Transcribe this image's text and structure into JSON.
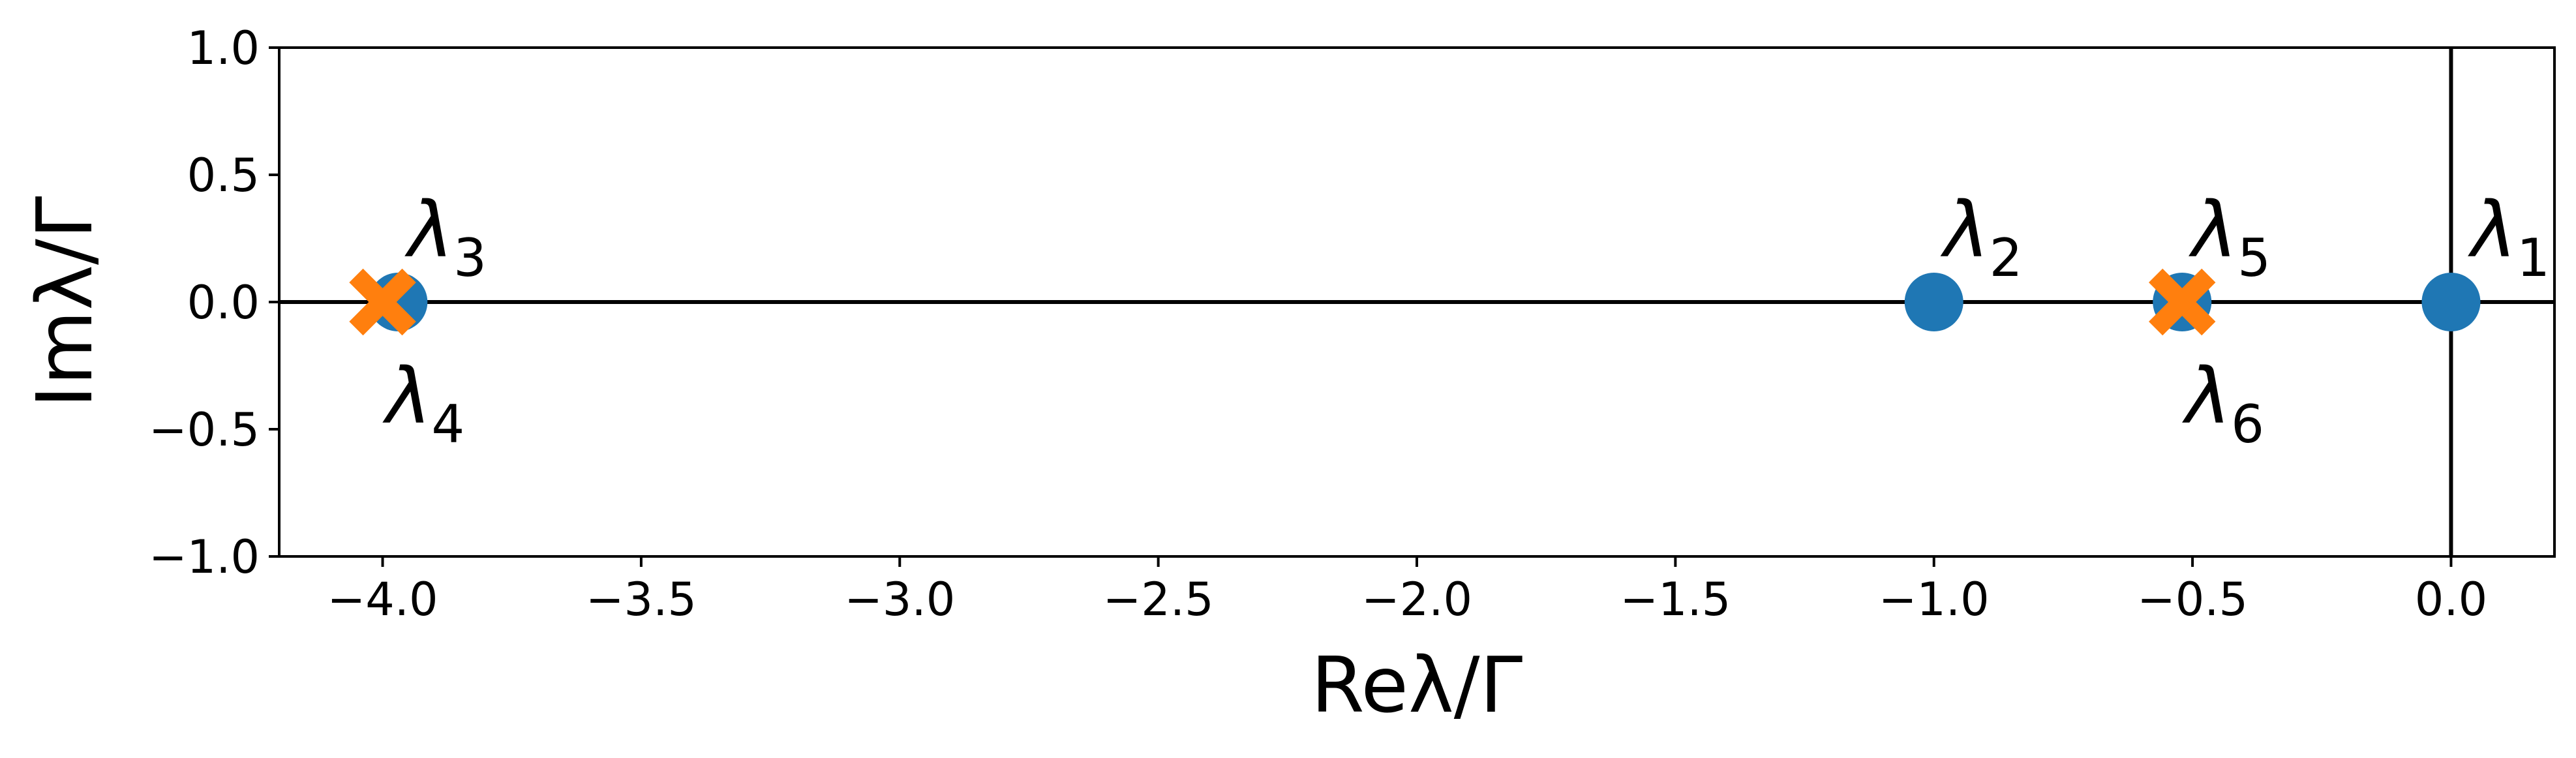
{
  "chart_data": {
    "type": "scatter",
    "xlabel": "Reλ/Γ",
    "ylabel": "Imλ/Γ",
    "xlim": [
      -4.2,
      0.2
    ],
    "ylim": [
      -1.0,
      1.0
    ],
    "grid": false,
    "x_ticks": [
      -4.0,
      -3.5,
      -3.0,
      -2.5,
      -2.0,
      -1.5,
      -1.0,
      -0.5,
      0.0
    ],
    "x_tick_labels": [
      "−4.0",
      "−3.5",
      "−3.0",
      "−2.5",
      "−2.0",
      "−1.5",
      "−1.0",
      "−0.5",
      "0.0"
    ],
    "y_ticks": [
      1.0,
      0.5,
      0.0,
      -0.5,
      -1.0
    ],
    "y_tick_labels": [
      "1.0",
      "0.5",
      "0.0",
      "−0.5",
      "−1.0"
    ],
    "reference_lines": {
      "horizontal_at_y": 0.0,
      "vertical_at_x": 0.0
    },
    "series": [
      {
        "marker": "circle",
        "color": "#1f77b4",
        "x": [
          0.0,
          -1.0,
          -3.97,
          -0.52
        ],
        "y": [
          0.0,
          0.0,
          0.0,
          0.0
        ]
      },
      {
        "marker": "x",
        "color": "#ff7f0e",
        "x": [
          -4.0,
          -0.52
        ],
        "y": [
          0.0,
          0.0
        ]
      }
    ],
    "annotations": [
      {
        "text": "λ",
        "sub": "1",
        "x": 0.02,
        "y": 0.0,
        "position": "upper-right"
      },
      {
        "text": "λ",
        "sub": "2",
        "x": -1.0,
        "y": 0.0,
        "position": "upper-right"
      },
      {
        "text": "λ",
        "sub": "3",
        "x": -3.97,
        "y": 0.0,
        "position": "upper-right"
      },
      {
        "text": "λ",
        "sub": "4",
        "x": -4.0,
        "y": 0.0,
        "position": "lower"
      },
      {
        "text": "λ",
        "sub": "5",
        "x": -0.52,
        "y": 0.0,
        "position": "upper-right"
      },
      {
        "text": "λ",
        "sub": "6",
        "x": -0.52,
        "y": 0.0,
        "position": "lower"
      }
    ]
  }
}
